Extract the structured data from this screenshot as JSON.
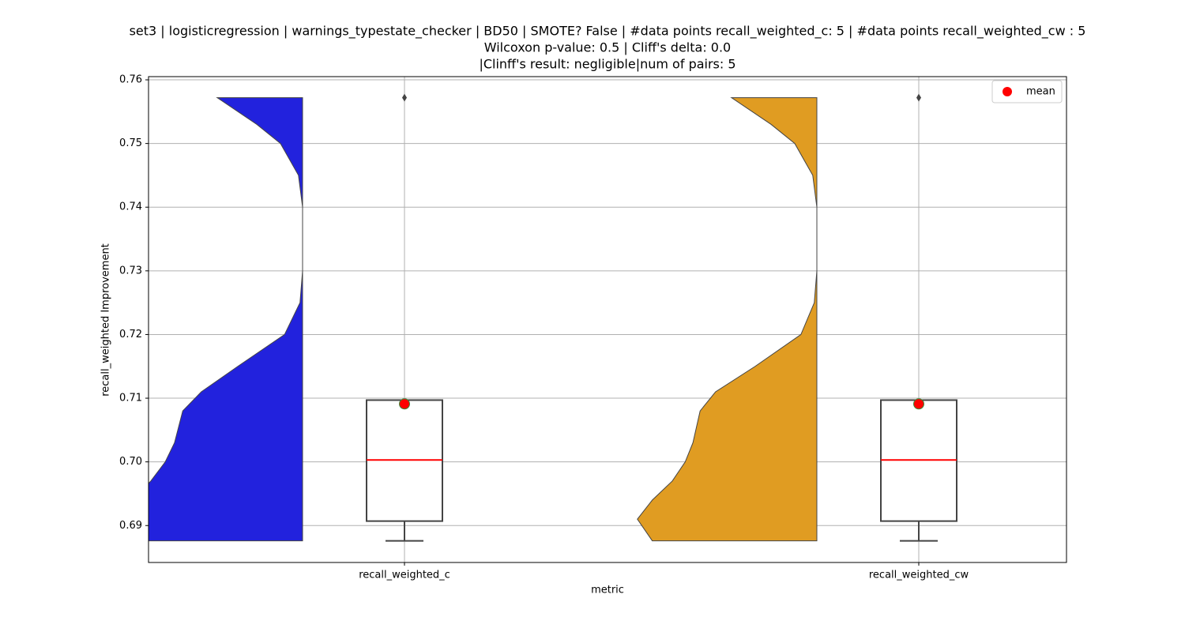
{
  "chart_data": {
    "type": "violin_box",
    "title": [
      "set3 | logisticregression | warnings_typestate_checker | BD50 | SMOTE? False | #data points recall_weighted_c: 5 | #data points recall_weighted_cw : 5",
      "Wilcoxon p-value: 0.5 | Cliff's delta: 0.0",
      "|Clinff's result: negligible|num of pairs: 5"
    ],
    "x_label": "metric",
    "y_label": "recall_weighted Improvement",
    "categories": [
      "recall_weighted_c",
      "recall_weighted_cw"
    ],
    "ylim": [
      0.6842,
      0.7605
    ],
    "yticks": [
      0.69,
      {
        "value": 0.7,
        "label": "0.70"
      },
      0.71,
      0.72,
      0.73,
      0.74,
      0.75,
      0.76
    ],
    "grid": true,
    "legend": {
      "label": "mean",
      "color": "#ff0000",
      "loc": "upper right"
    },
    "groups": [
      {
        "violin_color": "#2222dd",
        "violin_y": [
          0.7572,
          0.753,
          0.75,
          0.745,
          0.74,
          0.73,
          0.725,
          0.72,
          0.715,
          0.711,
          0.708,
          0.703,
          0.7,
          0.697,
          0.694,
          0.691,
          0.6876
        ],
        "violin_width": [
          0.166,
          0.089,
          0.043,
          0.008,
          0,
          0,
          0.005,
          0.035,
          0.126,
          0.197,
          0.233,
          0.249,
          0.267,
          0.295,
          0.33,
          0.37,
          0.4
        ],
        "box": {
          "whislo": 0.6876,
          "q1": 0.6907,
          "med": 0.7003,
          "q3": 0.7097,
          "mean": 0.7091,
          "fliers": [
            0.7572
          ]
        }
      },
      {
        "violin_color": "#e09c22",
        "violin_y": [
          0.7572,
          0.753,
          0.75,
          0.745,
          0.74,
          0.73,
          0.725,
          0.72,
          0.715,
          0.711,
          0.708,
          0.703,
          0.7,
          0.697,
          0.694,
          0.691,
          0.6876
        ],
        "violin_width": [
          0.166,
          0.089,
          0.043,
          0.008,
          0,
          0,
          0.005,
          0.031,
          0.12,
          0.197,
          0.227,
          0.241,
          0.256,
          0.281,
          0.32,
          0.349,
          0.32
        ],
        "box": {
          "whislo": 0.6876,
          "q1": 0.6907,
          "med": 0.7003,
          "q3": 0.7097,
          "mean": 0.7091,
          "fliers": [
            0.7572
          ]
        }
      }
    ]
  }
}
